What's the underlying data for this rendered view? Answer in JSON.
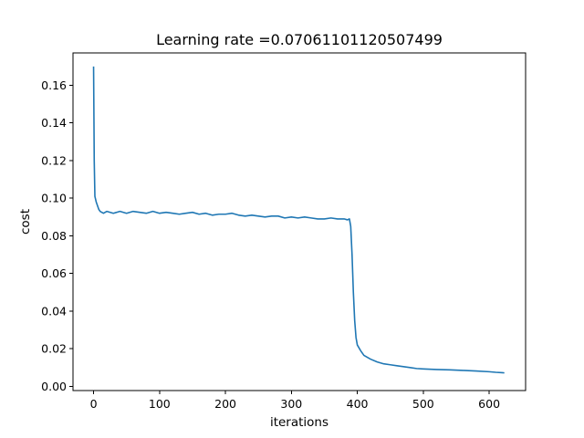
{
  "chart_data": {
    "type": "line",
    "title": "Learning rate =0.07061101120507499",
    "xlabel": "iterations",
    "ylabel": "cost",
    "xlim": [
      -31.2,
      655.2
    ],
    "ylim": [
      -0.0022,
      0.1772
    ],
    "grid": false,
    "legend": "none",
    "xticks": [
      0,
      100,
      200,
      300,
      400,
      500,
      600
    ],
    "xtick_labels": [
      "0",
      "100",
      "200",
      "300",
      "400",
      "500",
      "600"
    ],
    "yticks": [
      0.0,
      0.02,
      0.04,
      0.06,
      0.08,
      0.1,
      0.12,
      0.14,
      0.16
    ],
    "ytick_labels": [
      "0.00",
      "0.02",
      "0.04",
      "0.06",
      "0.08",
      "0.10",
      "0.12",
      "0.14",
      "0.16"
    ],
    "series": [
      {
        "color": "#1f77b4",
        "x": [
          0,
          1,
          2,
          4,
          6,
          8,
          10,
          15,
          20,
          30,
          40,
          50,
          60,
          70,
          80,
          90,
          100,
          110,
          120,
          130,
          140,
          150,
          160,
          170,
          180,
          190,
          200,
          210,
          220,
          230,
          240,
          250,
          260,
          270,
          280,
          290,
          300,
          310,
          320,
          330,
          340,
          350,
          360,
          370,
          380,
          385,
          388,
          390,
          392,
          394,
          396,
          398,
          400,
          405,
          410,
          420,
          430,
          440,
          450,
          460,
          470,
          480,
          490,
          500,
          520,
          540,
          560,
          580,
          600,
          610,
          620,
          623
        ],
        "y": [
          0.17,
          0.12,
          0.101,
          0.098,
          0.096,
          0.094,
          0.093,
          0.092,
          0.093,
          0.092,
          0.093,
          0.092,
          0.093,
          0.0925,
          0.092,
          0.093,
          0.092,
          0.0925,
          0.092,
          0.0915,
          0.092,
          0.0925,
          0.0915,
          0.092,
          0.091,
          0.0915,
          0.0915,
          0.092,
          0.091,
          0.0905,
          0.091,
          0.0905,
          0.09,
          0.0905,
          0.0905,
          0.0895,
          0.09,
          0.0895,
          0.09,
          0.0895,
          0.089,
          0.089,
          0.0895,
          0.089,
          0.089,
          0.0885,
          0.089,
          0.085,
          0.07,
          0.05,
          0.035,
          0.026,
          0.022,
          0.019,
          0.0165,
          0.0145,
          0.013,
          0.012,
          0.0115,
          0.011,
          0.0105,
          0.01,
          0.0095,
          0.0093,
          0.009,
          0.0088,
          0.0085,
          0.0082,
          0.0078,
          0.0075,
          0.0073,
          0.0072
        ]
      }
    ]
  }
}
